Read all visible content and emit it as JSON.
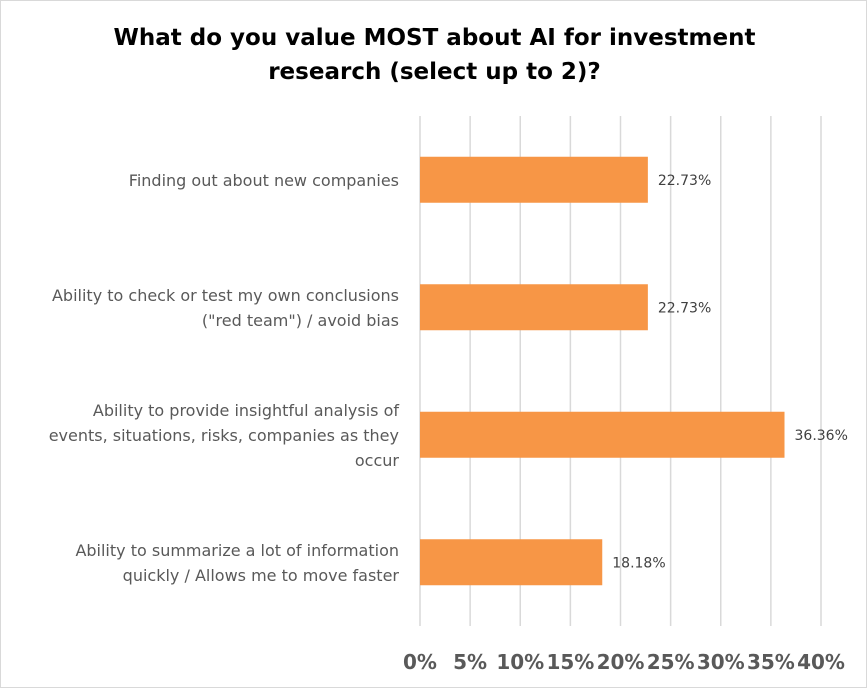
{
  "chart_data": {
    "type": "bar",
    "orientation": "horizontal",
    "title": "What do you value MOST about AI for investment research (select up to 2)?",
    "categories": [
      "Finding out about new companies",
      "Ability to check or test my own conclusions (\"red team\") / avoid bias",
      "Ability to provide insightful analysis of events, situations, risks, companies as they occur",
      "Ability to summarize a lot of information quickly / Allows me to move faster"
    ],
    "category_lines": [
      [
        "Finding out about new companies"
      ],
      [
        "Ability to check or test my own conclusions",
        "(\"red team\") / avoid bias"
      ],
      [
        "Ability to provide insightful analysis of",
        "events, situations, risks, companies as they",
        "occur"
      ],
      [
        "Ability to summarize a lot of information",
        "quickly / Allows me to move faster"
      ]
    ],
    "values": [
      22.73,
      22.73,
      36.36,
      18.18
    ],
    "data_labels": [
      "22.73%",
      "22.73%",
      "36.36%",
      "18.18%"
    ],
    "xlim": [
      0,
      40
    ],
    "x_ticks": [
      0,
      5,
      10,
      15,
      20,
      25,
      30,
      35,
      40
    ],
    "x_tick_labels": [
      "0%",
      "5%",
      "10%",
      "15%",
      "20%",
      "25%",
      "30%",
      "35%",
      "40%"
    ],
    "bar_color": "#f79646",
    "grid": "vertical",
    "legend": "none"
  }
}
